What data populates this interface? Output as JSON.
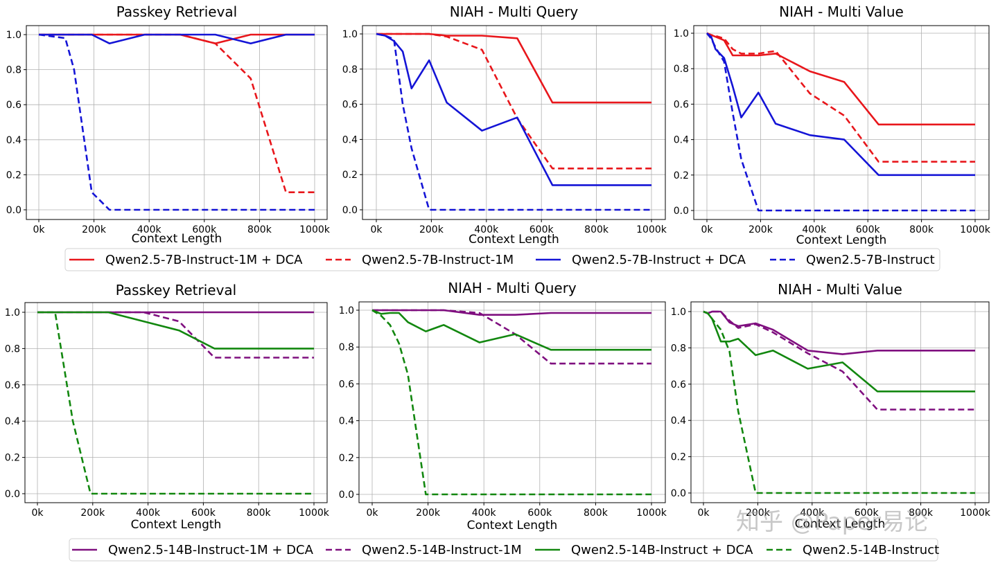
{
  "chart_data": [
    {
      "type": "line",
      "title": "Passkey Retrieval",
      "xlabel": "Context Length",
      "ylabel": "",
      "xlim": [
        0,
        1000
      ],
      "ylim": [
        0,
        1.0
      ],
      "x_ticks": [
        "0k",
        "200k",
        "400k",
        "600k",
        "800k",
        "1000k"
      ],
      "y_ticks": [
        "0.0",
        "0.2",
        "0.4",
        "0.6",
        "0.8",
        "1.0"
      ],
      "series": [
        {
          "name": "Qwen2.5-7B-Instruct-1M + DCA",
          "color": "#e8161b",
          "style": "solid",
          "x": [
            0,
            128,
            256,
            384,
            512,
            640,
            768,
            896,
            1000
          ],
          "values": [
            1.0,
            1.0,
            1.0,
            1.0,
            1.0,
            0.95,
            1.0,
            1.0,
            1.0
          ]
        },
        {
          "name": "Qwen2.5-7B-Instruct-1M",
          "color": "#e8161b",
          "style": "dashed",
          "x": [
            0,
            128,
            256,
            384,
            512,
            640,
            768,
            896,
            1000
          ],
          "values": [
            1.0,
            1.0,
            1.0,
            1.0,
            1.0,
            0.95,
            0.75,
            0.1,
            0.1
          ]
        },
        {
          "name": "Qwen2.5-7B-Instruct + DCA",
          "color": "#1414d6",
          "style": "solid",
          "x": [
            0,
            128,
            192,
            256,
            384,
            512,
            640,
            768,
            896,
            1000
          ],
          "values": [
            1.0,
            1.0,
            1.0,
            0.95,
            1.0,
            1.0,
            1.0,
            0.95,
            1.0,
            1.0
          ]
        },
        {
          "name": "Qwen2.5-7B-Instruct",
          "color": "#1414d6",
          "style": "dashed",
          "x": [
            0,
            96,
            128,
            192,
            256,
            384,
            512,
            640,
            768,
            896,
            1000
          ],
          "values": [
            1.0,
            0.98,
            0.8,
            0.1,
            0.0,
            0.0,
            0.0,
            0.0,
            0.0,
            0.0,
            0.0
          ]
        }
      ]
    },
    {
      "type": "line",
      "title": "NIAH - Multi Query",
      "xlabel": "Context Length",
      "ylabel": "",
      "xlim": [
        0,
        1000
      ],
      "ylim": [
        0,
        1.0
      ],
      "x_ticks": [
        "0k",
        "200k",
        "400k",
        "600k",
        "800k",
        "1000k"
      ],
      "y_ticks": [
        "0.0",
        "0.2",
        "0.4",
        "0.6",
        "0.8",
        "1.0"
      ],
      "series": [
        {
          "name": "Qwen2.5-7B-Instruct-1M + DCA",
          "color": "#e8161b",
          "style": "solid",
          "x": [
            0,
            32,
            64,
            96,
            128,
            192,
            256,
            384,
            512,
            640,
            1000
          ],
          "values": [
            1.0,
            1.0,
            1.0,
            1.0,
            1.0,
            1.0,
            0.99,
            0.99,
            0.975,
            0.61,
            0.61
          ]
        },
        {
          "name": "Qwen2.5-7B-Instruct-1M",
          "color": "#e8161b",
          "style": "dashed",
          "x": [
            0,
            32,
            64,
            96,
            128,
            192,
            256,
            384,
            512,
            640,
            1000
          ],
          "values": [
            1.0,
            1.0,
            1.0,
            1.0,
            1.0,
            1.0,
            0.985,
            0.91,
            0.52,
            0.235,
            0.235
          ]
        },
        {
          "name": "Qwen2.5-7B-Instruct + DCA",
          "color": "#1414d6",
          "style": "solid",
          "x": [
            0,
            32,
            64,
            96,
            128,
            192,
            256,
            384,
            512,
            640,
            1000
          ],
          "values": [
            1.0,
            0.99,
            0.96,
            0.9,
            0.69,
            0.85,
            0.61,
            0.45,
            0.525,
            0.14,
            0.14
          ]
        },
        {
          "name": "Qwen2.5-7B-Instruct",
          "color": "#1414d6",
          "style": "dashed",
          "x": [
            0,
            32,
            64,
            96,
            128,
            192,
            256,
            384,
            512,
            640,
            768,
            896,
            1000
          ],
          "values": [
            1.0,
            0.99,
            0.97,
            0.6,
            0.35,
            0.0,
            0.0,
            0.0,
            0.0,
            0.0,
            0.0,
            0.0,
            0.0
          ]
        }
      ]
    },
    {
      "type": "line",
      "title": "NIAH - Multi Value",
      "xlabel": "Context Length",
      "ylabel": "",
      "xlim": [
        0,
        1000
      ],
      "ylim": [
        0,
        1.0
      ],
      "x_ticks": [
        "0k",
        "200k",
        "400k",
        "600k",
        "800k",
        "1000k"
      ],
      "y_ticks": [
        "0.0",
        "0.2",
        "0.4",
        "0.6",
        "0.8",
        "1.0"
      ],
      "series": [
        {
          "name": "Qwen2.5-7B-Instruct-1M + DCA",
          "color": "#e8161b",
          "style": "solid",
          "x": [
            0,
            16,
            32,
            64,
            96,
            128,
            192,
            256,
            384,
            512,
            640,
            1000
          ],
          "values": [
            1.0,
            0.99,
            0.98,
            0.96,
            0.875,
            0.875,
            0.875,
            0.885,
            0.785,
            0.725,
            0.485,
            0.485
          ]
        },
        {
          "name": "Qwen2.5-7B-Instruct-1M",
          "color": "#e8161b",
          "style": "dashed",
          "x": [
            0,
            16,
            32,
            64,
            96,
            128,
            192,
            256,
            384,
            512,
            640,
            1000
          ],
          "values": [
            1.0,
            0.99,
            0.985,
            0.97,
            0.91,
            0.885,
            0.885,
            0.9,
            0.66,
            0.535,
            0.275,
            0.275
          ]
        },
        {
          "name": "Qwen2.5-7B-Instruct + DCA",
          "color": "#1414d6",
          "style": "solid",
          "x": [
            0,
            16,
            32,
            64,
            96,
            128,
            192,
            256,
            384,
            512,
            640,
            1000
          ],
          "values": [
            1.0,
            0.98,
            0.91,
            0.86,
            0.7,
            0.525,
            0.665,
            0.49,
            0.425,
            0.4,
            0.2,
            0.2
          ]
        },
        {
          "name": "Qwen2.5-7B-Instruct",
          "color": "#1414d6",
          "style": "dashed",
          "x": [
            0,
            16,
            32,
            64,
            96,
            128,
            192,
            256,
            384,
            512,
            640,
            768,
            896,
            1000
          ],
          "values": [
            1.0,
            0.97,
            0.92,
            0.84,
            0.55,
            0.29,
            0.0,
            0.0,
            0.0,
            0.0,
            0.0,
            0.0,
            0.0,
            0.0
          ]
        }
      ]
    },
    {
      "type": "line",
      "title": "Passkey Retrieval",
      "xlabel": "Context Length",
      "ylabel": "",
      "xlim": [
        0,
        1000
      ],
      "ylim": [
        0,
        1.0
      ],
      "x_ticks": [
        "0k",
        "200k",
        "400k",
        "600k",
        "800k",
        "1000k"
      ],
      "y_ticks": [
        "0.0",
        "0.2",
        "0.4",
        "0.6",
        "0.8",
        "1.0"
      ],
      "series": [
        {
          "name": "Qwen2.5-14B-Instruct-1M + DCA",
          "color": "#7f0f7f",
          "style": "solid",
          "x": [
            0,
            128,
            256,
            384,
            512,
            640,
            768,
            896,
            1000
          ],
          "values": [
            1.0,
            1.0,
            1.0,
            1.0,
            1.0,
            1.0,
            1.0,
            1.0,
            1.0
          ]
        },
        {
          "name": "Qwen2.5-14B-Instruct-1M",
          "color": "#7f0f7f",
          "style": "dashed",
          "x": [
            0,
            128,
            256,
            384,
            512,
            640,
            768,
            896,
            1000
          ],
          "values": [
            1.0,
            1.0,
            1.0,
            1.0,
            0.95,
            0.75,
            0.75,
            0.75,
            0.75
          ]
        },
        {
          "name": "Qwen2.5-14B-Instruct + DCA",
          "color": "#12870f",
          "style": "solid",
          "x": [
            0,
            128,
            256,
            384,
            512,
            640,
            768,
            896,
            1000
          ],
          "values": [
            1.0,
            1.0,
            1.0,
            0.95,
            0.9,
            0.8,
            0.8,
            0.8,
            0.8
          ]
        },
        {
          "name": "Qwen2.5-14B-Instruct",
          "color": "#12870f",
          "style": "dashed",
          "x": [
            0,
            64,
            128,
            192,
            256,
            384,
            512,
            640,
            768,
            896,
            1000
          ],
          "values": [
            1.0,
            1.0,
            0.4,
            0.0,
            0.0,
            0.0,
            0.0,
            0.0,
            0.0,
            0.0,
            0.0
          ]
        }
      ]
    },
    {
      "type": "line",
      "title": "NIAH - Multi Query",
      "xlabel": "Context Length",
      "ylabel": "",
      "xlim": [
        0,
        1000
      ],
      "ylim": [
        0,
        1.0
      ],
      "x_ticks": [
        "0k",
        "200k",
        "400k",
        "600k",
        "800k",
        "1000k"
      ],
      "y_ticks": [
        "0.0",
        "0.2",
        "0.4",
        "0.6",
        "0.8",
        "1.0"
      ],
      "series": [
        {
          "name": "Qwen2.5-14B-Instruct-1M + DCA",
          "color": "#7f0f7f",
          "style": "solid",
          "x": [
            0,
            32,
            64,
            96,
            128,
            192,
            256,
            384,
            512,
            640,
            1000
          ],
          "values": [
            1.0,
            1.0,
            1.0,
            1.0,
            1.0,
            1.0,
            1.0,
            0.975,
            0.975,
            0.985,
            0.985
          ]
        },
        {
          "name": "Qwen2.5-14B-Instruct-1M",
          "color": "#7f0f7f",
          "style": "dashed",
          "x": [
            0,
            32,
            64,
            96,
            128,
            192,
            256,
            384,
            512,
            640,
            1000
          ],
          "values": [
            1.0,
            1.0,
            1.0,
            1.0,
            1.0,
            1.0,
            1.0,
            0.985,
            0.87,
            0.71,
            0.71
          ]
        },
        {
          "name": "Qwen2.5-14B-Instruct + DCA",
          "color": "#12870f",
          "style": "solid",
          "x": [
            0,
            32,
            64,
            96,
            128,
            192,
            256,
            384,
            512,
            640,
            1000
          ],
          "values": [
            1.0,
            0.98,
            0.985,
            0.985,
            0.935,
            0.885,
            0.92,
            0.825,
            0.87,
            0.785,
            0.785
          ]
        },
        {
          "name": "Qwen2.5-14B-Instruct",
          "color": "#12870f",
          "style": "dashed",
          "x": [
            0,
            32,
            64,
            96,
            128,
            192,
            256,
            384,
            512,
            640,
            768,
            896,
            1000
          ],
          "values": [
            1.0,
            0.97,
            0.92,
            0.82,
            0.65,
            0.0,
            0.0,
            0.0,
            0.0,
            0.0,
            0.0,
            0.0,
            0.0
          ]
        }
      ]
    },
    {
      "type": "line",
      "title": "NIAH - Multi Value",
      "xlabel": "Context Length",
      "ylabel": "",
      "xlim": [
        0,
        1000
      ],
      "ylim": [
        0,
        1.0
      ],
      "x_ticks": [
        "0k",
        "200k",
        "400k",
        "600k",
        "800k",
        "1000k"
      ],
      "y_ticks": [
        "0.0",
        "0.2",
        "0.4",
        "0.6",
        "0.8",
        "1.0"
      ],
      "series": [
        {
          "name": "Qwen2.5-14B-Instruct-1M + DCA",
          "color": "#7f0f7f",
          "style": "solid",
          "x": [
            0,
            16,
            32,
            64,
            96,
            128,
            192,
            256,
            384,
            512,
            640,
            1000
          ],
          "values": [
            1.0,
            0.99,
            1.0,
            1.0,
            0.94,
            0.92,
            0.935,
            0.9,
            0.785,
            0.765,
            0.785,
            0.785
          ]
        },
        {
          "name": "Qwen2.5-14B-Instruct-1M",
          "color": "#7f0f7f",
          "style": "dashed",
          "x": [
            0,
            16,
            32,
            64,
            96,
            128,
            192,
            256,
            384,
            512,
            640,
            1000
          ],
          "values": [
            1.0,
            0.99,
            1.0,
            1.0,
            0.95,
            0.91,
            0.93,
            0.885,
            0.77,
            0.67,
            0.46,
            0.46
          ]
        },
        {
          "name": "Qwen2.5-14B-Instruct + DCA",
          "color": "#12870f",
          "style": "solid",
          "x": [
            0,
            16,
            32,
            64,
            96,
            128,
            192,
            256,
            384,
            512,
            640,
            1000
          ],
          "values": [
            1.0,
            0.99,
            0.96,
            0.835,
            0.835,
            0.85,
            0.76,
            0.785,
            0.685,
            0.72,
            0.56,
            0.56
          ]
        },
        {
          "name": "Qwen2.5-14B-Instruct",
          "color": "#12870f",
          "style": "dashed",
          "x": [
            0,
            16,
            32,
            64,
            96,
            128,
            192,
            256,
            384,
            512,
            640,
            768,
            896,
            1000
          ],
          "values": [
            1.0,
            0.99,
            0.96,
            0.9,
            0.78,
            0.45,
            0.0,
            0.0,
            0.0,
            0.0,
            0.0,
            0.0,
            0.0,
            0.0
          ]
        }
      ]
    }
  ],
  "legends": [
    {
      "entries": [
        {
          "label": "Qwen2.5-7B-Instruct-1M + DCA",
          "color": "#e8161b",
          "style": "solid"
        },
        {
          "label": "Qwen2.5-7B-Instruct-1M",
          "color": "#e8161b",
          "style": "dashed"
        },
        {
          "label": "Qwen2.5-7B-Instruct + DCA",
          "color": "#1414d6",
          "style": "solid"
        },
        {
          "label": "Qwen2.5-7B-Instruct",
          "color": "#1414d6",
          "style": "dashed"
        }
      ]
    },
    {
      "entries": [
        {
          "label": "Qwen2.5-14B-Instruct-1M + DCA",
          "color": "#7f0f7f",
          "style": "solid"
        },
        {
          "label": "Qwen2.5-14B-Instruct-1M",
          "color": "#7f0f7f",
          "style": "dashed"
        },
        {
          "label": "Qwen2.5-14B-Instruct + DCA",
          "color": "#12870f",
          "style": "solid"
        },
        {
          "label": "Qwen2.5-14B-Instruct",
          "color": "#12870f",
          "style": "dashed"
        }
      ]
    }
  ],
  "watermark": "知乎 @Paper易论"
}
